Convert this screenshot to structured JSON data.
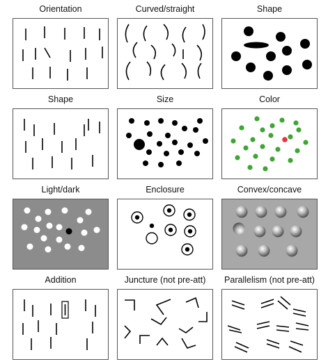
{
  "panels": [
    {
      "title": "Orientation",
      "background": "#ffffff"
    },
    {
      "title": "Curved/straight",
      "background": "#ffffff"
    },
    {
      "title": "Shape",
      "background": "#ffffff"
    },
    {
      "title": "Shape",
      "background": "#ffffff"
    },
    {
      "title": "Size",
      "background": "#ffffff"
    },
    {
      "title": "Color",
      "background": "#ffffff",
      "dot_color": "#3fa535",
      "target_color": "#e8323c"
    },
    {
      "title": "Light/dark",
      "background": "#8c8c8c"
    },
    {
      "title": "Enclosure",
      "background": "#ffffff"
    },
    {
      "title": "Convex/concave",
      "background": "#a8a8a8"
    },
    {
      "title": "Addition",
      "background": "#ffffff"
    },
    {
      "title": "Juncture (not pre-att)",
      "background": "#ffffff"
    },
    {
      "title": "Parallelism (not pre-att)",
      "background": "#ffffff"
    }
  ]
}
